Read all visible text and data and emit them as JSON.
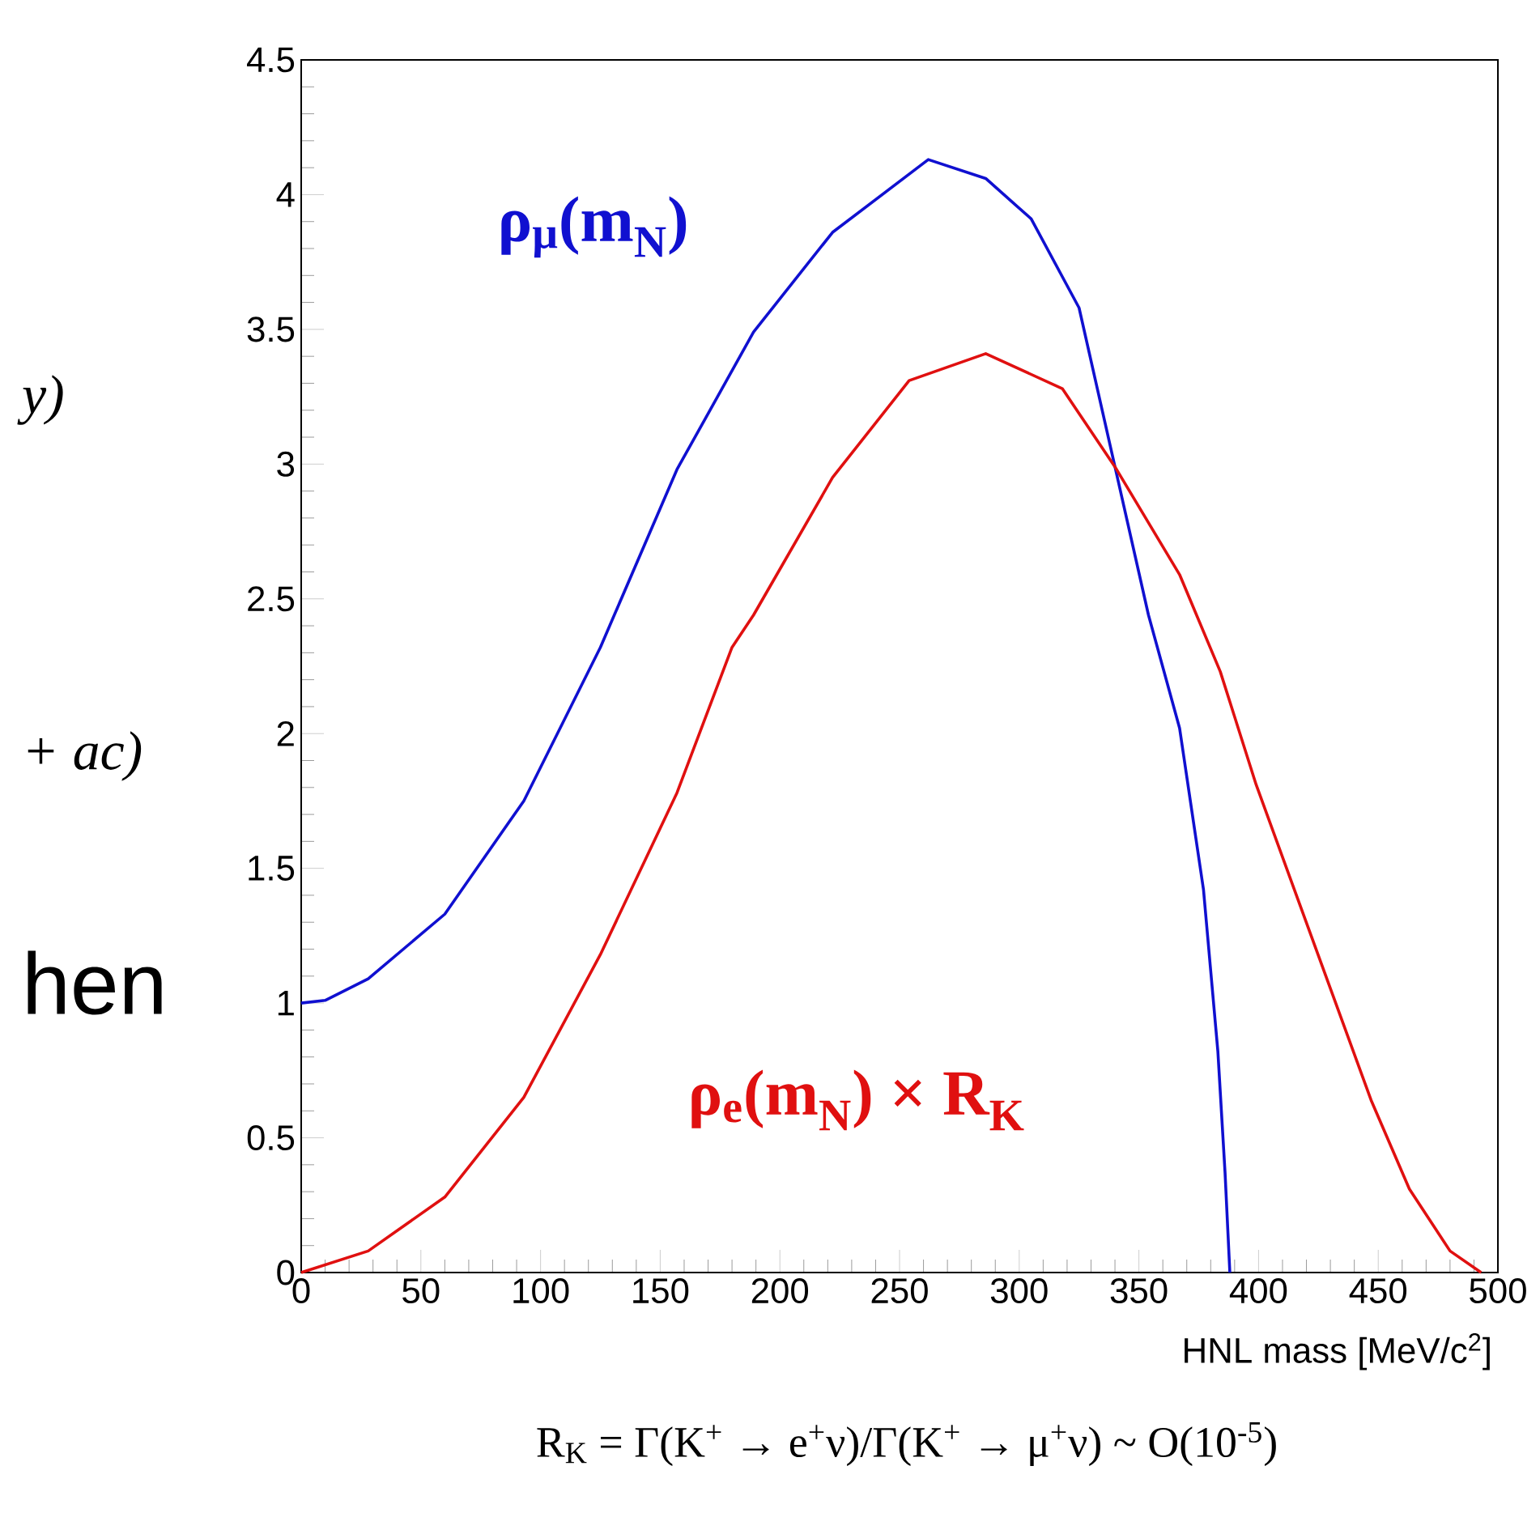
{
  "chart_data": {
    "type": "line",
    "xlabel": "HNL mass [MeV/c$^{2}$]",
    "xlim": [
      0,
      500
    ],
    "xticks": [
      0,
      50,
      100,
      150,
      200,
      250,
      300,
      350,
      400,
      450,
      500
    ],
    "ylim": [
      0,
      4.5
    ],
    "yticks": [
      0,
      0.5,
      1,
      1.5,
      2,
      2.5,
      3,
      3.5,
      4,
      4.5
    ],
    "marker": "none",
    "line_style": "solid",
    "series": [
      {
        "name": "ρ$_{μ}$(m$_{N}$)",
        "color": "#1010d0",
        "x": [
          0,
          10,
          28,
          60,
          93,
          125,
          157,
          189,
          222,
          262,
          286,
          305,
          325,
          340,
          354,
          367,
          377,
          383,
          386,
          388
        ],
        "values": [
          1.0,
          1.01,
          1.09,
          1.33,
          1.75,
          2.32,
          2.98,
          3.49,
          3.86,
          4.13,
          4.06,
          3.91,
          3.58,
          2.99,
          2.44,
          2.02,
          1.42,
          0.82,
          0.37,
          0
        ]
      },
      {
        "name": "ρ$_{e}$(m$_{N}$) × R$_{K}$",
        "color": "#e01010",
        "x": [
          0,
          28,
          60,
          93,
          125,
          157,
          180,
          189,
          222,
          254,
          286,
          318,
          340,
          367,
          384,
          399,
          415,
          431,
          447,
          463,
          480,
          493
        ],
        "values": [
          0,
          0.08,
          0.28,
          0.65,
          1.18,
          1.78,
          2.32,
          2.44,
          2.95,
          3.31,
          3.41,
          3.28,
          2.99,
          2.59,
          2.23,
          1.81,
          1.42,
          1.03,
          0.64,
          0.31,
          0.08,
          0
        ]
      }
    ],
    "annotations": [
      "R$_{K}$ = Γ(K$^{+}$ → e$^{+}$ν)/Γ(K$^{+}$ → μ$^{+}$ν) ~ O(10$^{-5}$)",
      "y)",
      "+ ac)",
      "hen"
    ]
  }
}
